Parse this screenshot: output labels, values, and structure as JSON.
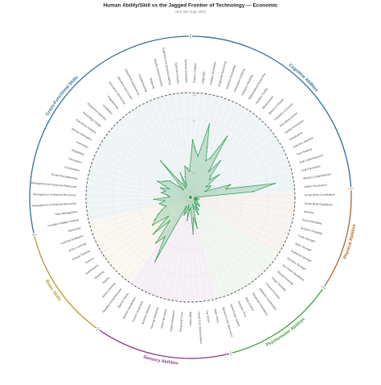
{
  "chart_data": {
    "type": "radial",
    "title": "Human Ability/Skill vs the Jagged Frontier of Technology — Economic",
    "subtitle": "Gert Van Vugt, 2025",
    "rlim": [
      0,
      100
    ],
    "rticks": [
      25,
      50,
      75,
      100
    ],
    "series_color": "#3aa35a",
    "groups": [
      {
        "name": "Cognitive Abilities",
        "color": "#2b6e96",
        "items": [
          "Fluency of Ideas",
          "Originality",
          "Problem Sensitivity",
          "Deductive Reasoning",
          "Inductive Reasoning",
          "Information Ordering",
          "Category Flexibility",
          "Mathematical Reasoning",
          "Number Facility",
          "Memorization",
          "Speed of Closure",
          "Flexibility of Closure",
          "Perceptual Speed",
          "Spatial Orientation",
          "Visualization",
          "Selective Attention",
          "Time Sharing",
          "Oral Comprehension",
          "Oral Expression",
          "Written Comprehension",
          "Written Expression"
        ],
        "values": [
          55,
          45,
          40,
          72,
          50,
          38,
          42,
          68,
          30,
          45,
          28,
          25,
          35,
          18,
          22,
          20,
          15,
          40,
          35,
          82,
          60
        ]
      },
      {
        "name": "Physical Abilities",
        "color": "#b0622a",
        "items": [
          "Gross Body Coordination",
          "Gross Body Equilibrium",
          "Stamina",
          "Extent Flexibility",
          "Dynamic Flexibility",
          "Trunk Strength",
          "Static Strength",
          "Explosive Strength",
          "Dynamic Strength"
        ],
        "values": [
          6,
          5,
          4,
          8,
          6,
          5,
          7,
          4,
          5
        ]
      },
      {
        "name": "Psychomotor Abilities",
        "color": "#3f9a3a",
        "items": [
          "Arm-Hand Steadiness",
          "Manual Dexterity",
          "Finger Dexterity",
          "Control Precision",
          "Multilimb Coordination",
          "Response Orientation",
          "Rate Control",
          "Reaction Time",
          "Wrist-Finger Speed",
          "Speed of Limb Movement"
        ],
        "values": [
          8,
          10,
          12,
          9,
          6,
          14,
          10,
          18,
          12,
          7
        ]
      },
      {
        "name": "Sensory Abilities",
        "color": "#8c3a8c",
        "items": [
          "Near Vision",
          "Far Vision",
          "Visual Color Discrimination",
          "Night Vision",
          "Peripheral Vision",
          "Depth Perception",
          "Glare Sensitivity",
          "Hearing Sensitivity",
          "Auditory Attention",
          "Sound Localization",
          "Speech Recognition",
          "Speech Clarity"
        ],
        "values": [
          30,
          20,
          35,
          10,
          12,
          22,
          8,
          15,
          18,
          10,
          70,
          45
        ]
      },
      {
        "name": "Basic Skills",
        "color": "#b39a2e",
        "items": [
          "Reading Comprehension",
          "Active Listening",
          "Writing",
          "Speaking",
          "Mathematics",
          "Science",
          "Critical Thinking",
          "Active Learning",
          "Learning Strategies",
          "Monitoring"
        ],
        "values": [
          55,
          30,
          50,
          28,
          45,
          40,
          35,
          30,
          25,
          28
        ]
      },
      {
        "name": "Cross-Functional Skills",
        "color": "#2f7290",
        "items": [
          "Complex Problem Solving",
          "Time Management",
          "Management of Financial Resources",
          "Management of Material Resources",
          "Management of Personnel Resources",
          "Social Perceptiveness",
          "Coordination",
          "Persuasion",
          "Negotiation",
          "Instructing",
          "Service Orientation",
          "Operations Analysis",
          "Technology Design",
          "Equipment Selection",
          "Installation",
          "Programming",
          "Operations Monitoring",
          "Operation and Control",
          "Equipment Maintenance",
          "Troubleshooting",
          "Repairing",
          "Quality Control Analysis",
          "Judgment and Decision Making",
          "Systems Analysis",
          "Systems Evaluation"
        ],
        "values": [
          30,
          25,
          35,
          20,
          22,
          28,
          25,
          30,
          22,
          35,
          30,
          28,
          25,
          15,
          10,
          45,
          20,
          15,
          10,
          25,
          12,
          20,
          30,
          28,
          25
        ]
      }
    ]
  }
}
